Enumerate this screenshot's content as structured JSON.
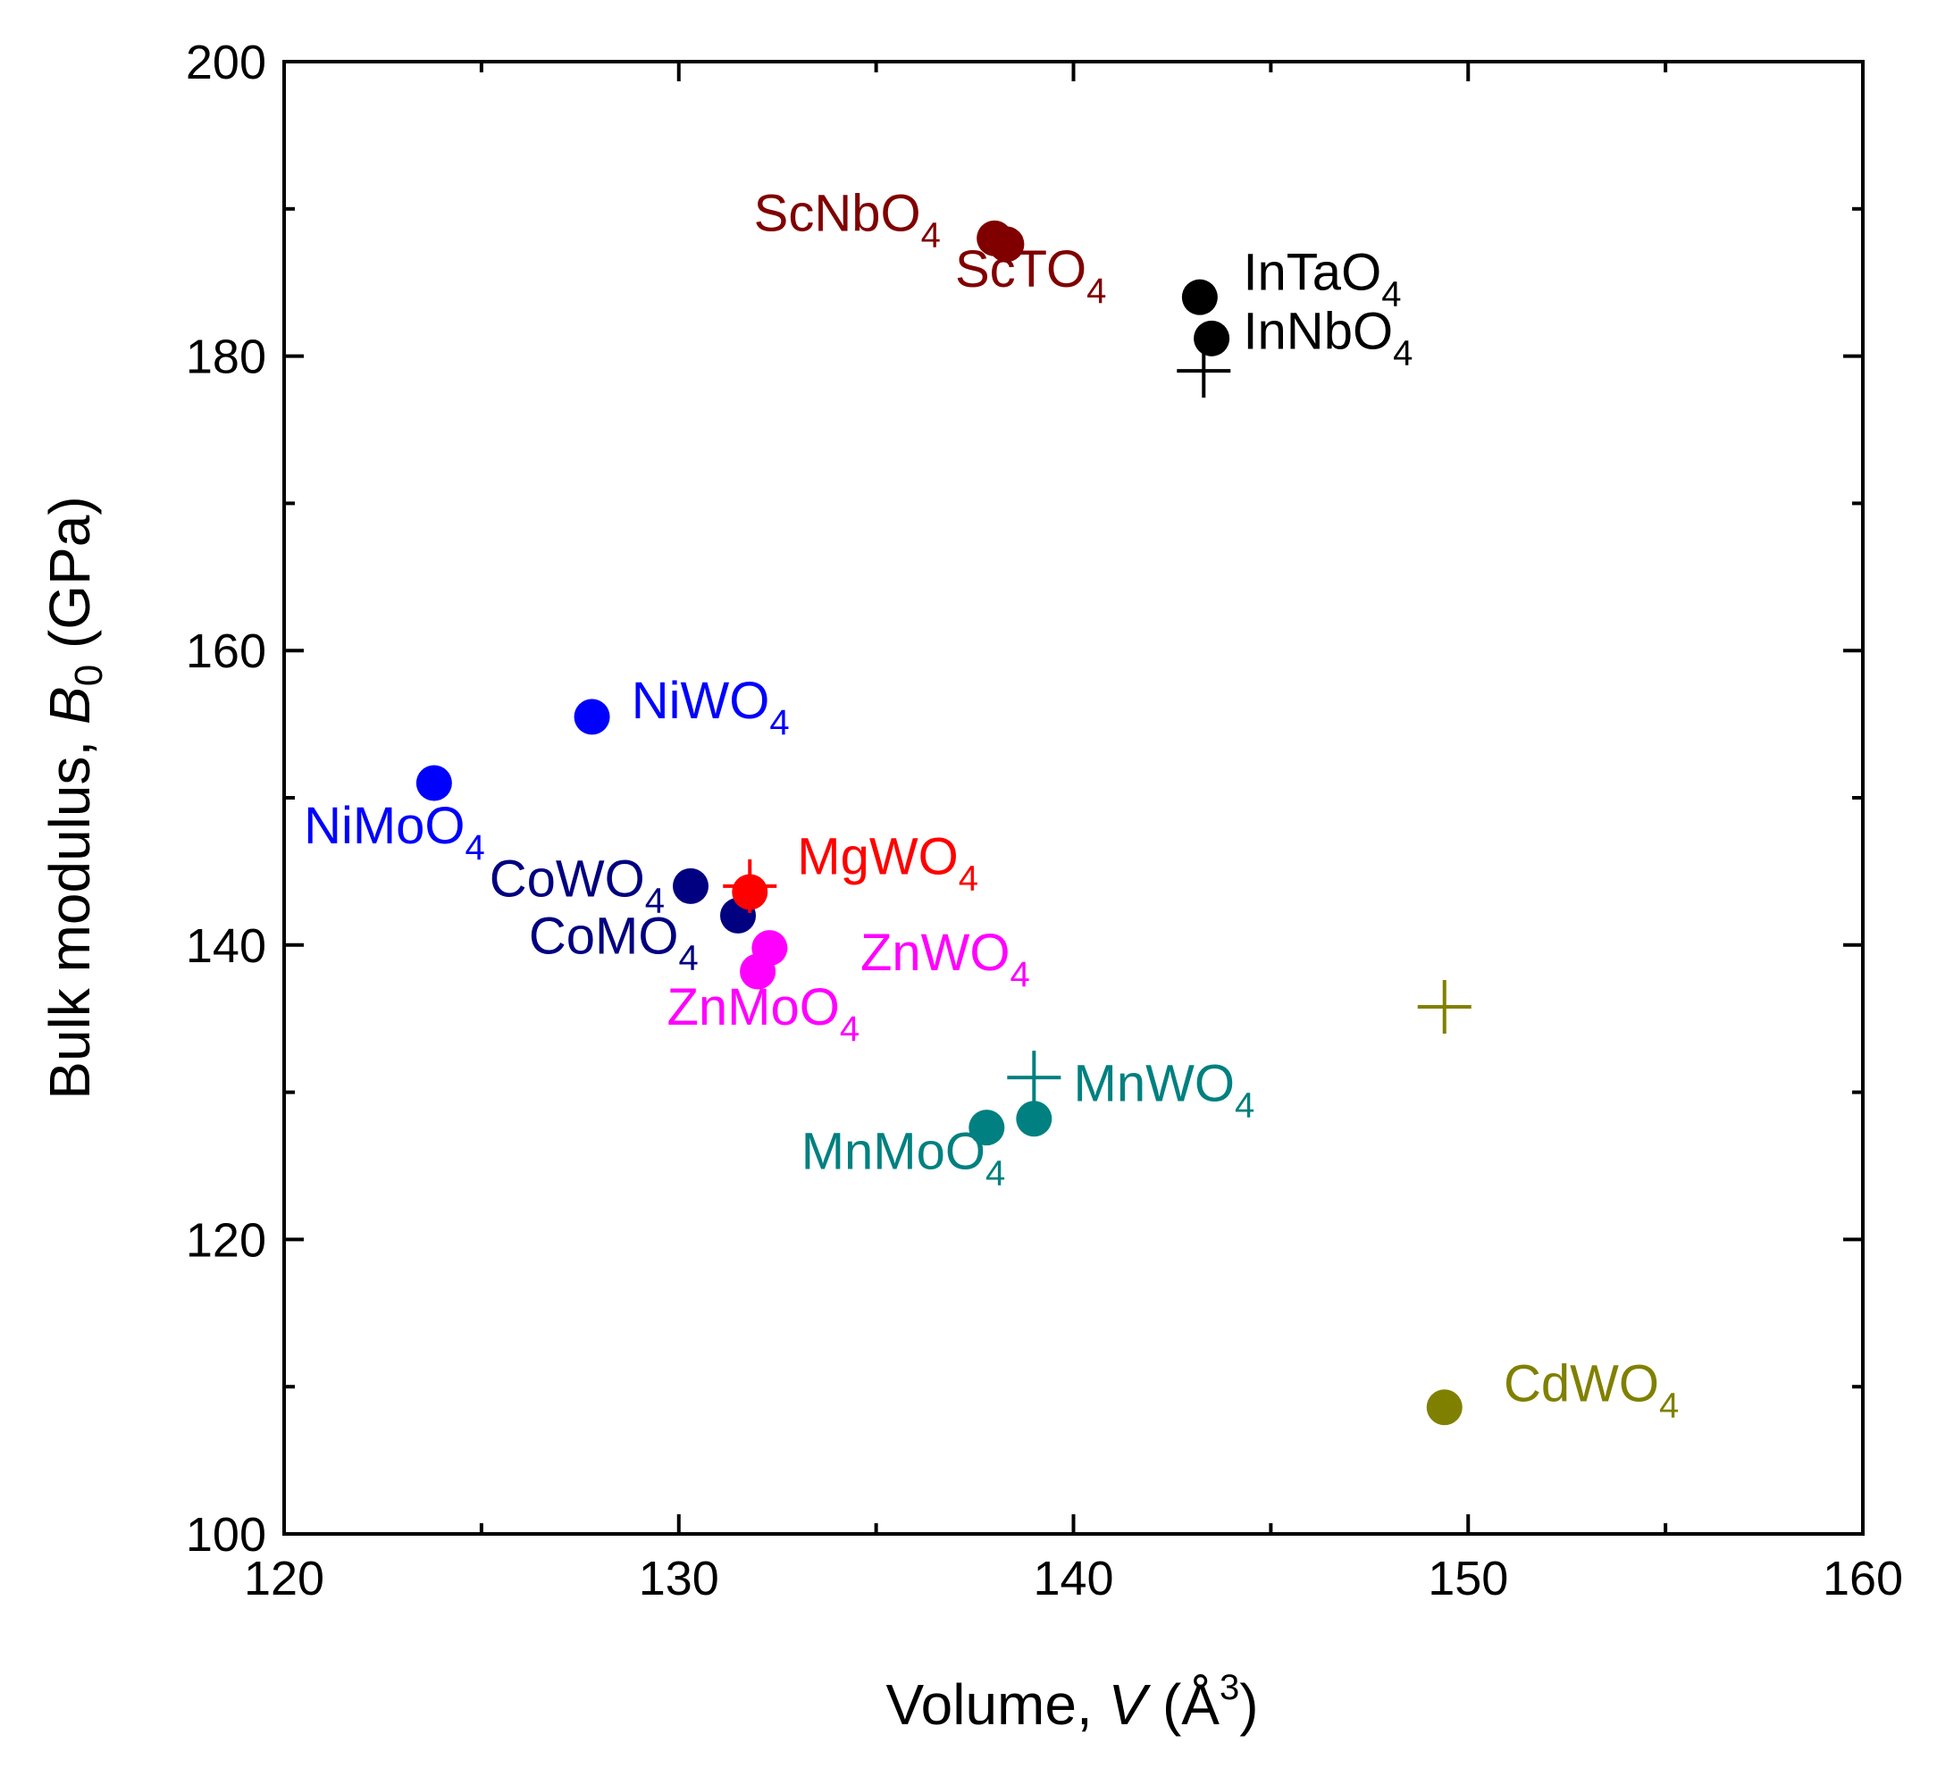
{
  "chart_data": {
    "type": "scatter",
    "title": "",
    "xlabel": {
      "text": "Volume, ",
      "var": "V",
      "unit_open": " (Å",
      "unit_sup": "3",
      "unit_close": ")"
    },
    "ylabel": {
      "text": "Bulk modulus, ",
      "var": "B",
      "var_sub": "0",
      "unit": " (GPa)"
    },
    "xlim": [
      120,
      160
    ],
    "ylim": [
      100,
      200
    ],
    "xticks": [
      120,
      130,
      140,
      150,
      160
    ],
    "yticks": [
      100,
      120,
      140,
      160,
      180,
      200
    ],
    "x_minor_step": 5,
    "y_minor_step": 10,
    "grid": false,
    "series": [
      {
        "name": "ScNbO4",
        "color": "#800000",
        "points": [
          {
            "x": 138.0,
            "y": 188.0,
            "marker": "circle"
          }
        ]
      },
      {
        "name": "ScTO4",
        "color": "#800000",
        "points": [
          {
            "x": 138.3,
            "y": 187.6,
            "marker": "circle"
          }
        ]
      },
      {
        "name": "InTaO4",
        "color": "#000000",
        "points": [
          {
            "x": 143.2,
            "y": 184.0,
            "marker": "circle"
          }
        ]
      },
      {
        "name": "InNbO4",
        "color": "#000000",
        "points": [
          {
            "x": 143.5,
            "y": 181.2,
            "marker": "circle"
          },
          {
            "x": 143.3,
            "y": 179.0,
            "marker": "plus"
          }
        ]
      },
      {
        "name": "NiWO4",
        "color": "#0000FF",
        "points": [
          {
            "x": 127.8,
            "y": 155.5,
            "marker": "circle"
          }
        ]
      },
      {
        "name": "NiMoO4",
        "color": "#0000FF",
        "points": [
          {
            "x": 123.8,
            "y": 151.0,
            "marker": "circle"
          }
        ]
      },
      {
        "name": "CoWO4",
        "color": "#000080",
        "points": [
          {
            "x": 130.3,
            "y": 144.0,
            "marker": "circle"
          }
        ]
      },
      {
        "name": "CoMO4",
        "color": "#000080",
        "points": [
          {
            "x": 131.5,
            "y": 142.0,
            "marker": "circle"
          }
        ]
      },
      {
        "name": "MgWO4",
        "color": "#FF0000",
        "points": [
          {
            "x": 131.8,
            "y": 143.6,
            "marker": "circle"
          },
          {
            "x": 131.8,
            "y": 144.0,
            "marker": "plus"
          }
        ]
      },
      {
        "name": "ZnWO4",
        "color": "#FF00FF",
        "points": [
          {
            "x": 132.3,
            "y": 139.8,
            "marker": "circle"
          }
        ]
      },
      {
        "name": "ZnMoO4",
        "color": "#FF00FF",
        "points": [
          {
            "x": 132.0,
            "y": 138.2,
            "marker": "circle"
          }
        ]
      },
      {
        "name": "MnWO4",
        "color": "#008080",
        "points": [
          {
            "x": 139.0,
            "y": 128.2,
            "marker": "circle"
          },
          {
            "x": 139.0,
            "y": 131.0,
            "marker": "plus"
          }
        ]
      },
      {
        "name": "MnMoO4",
        "color": "#008080",
        "points": [
          {
            "x": 137.8,
            "y": 127.6,
            "marker": "circle"
          }
        ]
      },
      {
        "name": "CdWO4",
        "color": "#808000",
        "points": [
          {
            "x": 149.4,
            "y": 108.6,
            "marker": "circle"
          },
          {
            "x": 149.4,
            "y": 135.8,
            "marker": "plus"
          }
        ]
      }
    ],
    "annotations": [
      {
        "id": "ScNbO4",
        "base": "ScNbO",
        "sub": "4",
        "color": "#800000",
        "x": 131.9,
        "y": 188.5
      },
      {
        "id": "ScTO4",
        "base": "ScTO",
        "sub": "4",
        "color": "#800000",
        "x": 137.0,
        "y": 184.7
      },
      {
        "id": "InTaO4",
        "base": "InTaO",
        "sub": "4",
        "color": "#000000",
        "x": 144.3,
        "y": 184.5
      },
      {
        "id": "InNbO4",
        "base": "InNbO",
        "sub": "4",
        "color": "#000000",
        "x": 144.3,
        "y": 180.5
      },
      {
        "id": "NiWO4",
        "base": "NiWO",
        "sub": "4",
        "color": "#0000FF",
        "x": 128.8,
        "y": 155.4
      },
      {
        "id": "NiMoO4",
        "base": "NiMoO",
        "sub": "4",
        "color": "#0000FF",
        "x": 120.5,
        "y": 146.9
      },
      {
        "id": "CoWO4",
        "base": "CoWO",
        "sub": "4",
        "color": "#000080",
        "x": 125.2,
        "y": 143.3
      },
      {
        "id": "CoMO4",
        "base": "CoMO",
        "sub": "4",
        "color": "#000080",
        "x": 126.2,
        "y": 139.4
      },
      {
        "id": "MgWO4",
        "base": "MgWO",
        "sub": "4",
        "color": "#FF0000",
        "x": 133.0,
        "y": 144.8
      },
      {
        "id": "ZnWO4",
        "base": "ZnWO",
        "sub": "4",
        "color": "#FF00FF",
        "x": 134.6,
        "y": 138.3
      },
      {
        "id": "ZnMoO4",
        "base": "ZnMoO",
        "sub": "4",
        "color": "#FF00FF",
        "x": 129.7,
        "y": 134.6
      },
      {
        "id": "MnWO4",
        "base": "MnWO",
        "sub": "4",
        "color": "#008080",
        "x": 140.0,
        "y": 129.4
      },
      {
        "id": "MnMoO4",
        "base": "MnMoO",
        "sub": "4",
        "color": "#008080",
        "x": 133.1,
        "y": 124.8
      },
      {
        "id": "CdWO4",
        "base": "CdWO",
        "sub": "4",
        "color": "#808000",
        "x": 150.9,
        "y": 109.0
      }
    ]
  }
}
